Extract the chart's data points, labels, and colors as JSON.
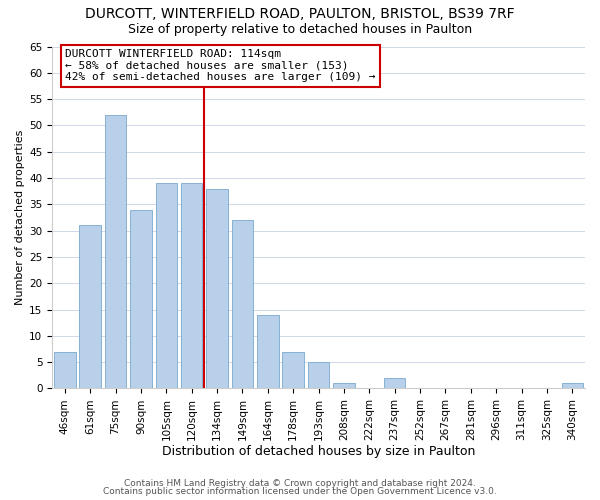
{
  "title": "DURCOTT, WINTERFIELD ROAD, PAULTON, BRISTOL, BS39 7RF",
  "subtitle": "Size of property relative to detached houses in Paulton",
  "xlabel": "Distribution of detached houses by size in Paulton",
  "ylabel": "Number of detached properties",
  "bar_labels": [
    "46sqm",
    "61sqm",
    "75sqm",
    "90sqm",
    "105sqm",
    "120sqm",
    "134sqm",
    "149sqm",
    "164sqm",
    "178sqm",
    "193sqm",
    "208sqm",
    "222sqm",
    "237sqm",
    "252sqm",
    "267sqm",
    "281sqm",
    "296sqm",
    "311sqm",
    "325sqm",
    "340sqm"
  ],
  "bar_values": [
    7,
    31,
    52,
    34,
    39,
    39,
    38,
    32,
    14,
    7,
    5,
    1,
    0,
    2,
    0,
    0,
    0,
    0,
    0,
    0,
    1
  ],
  "bar_color": "#b8d0ea",
  "bar_edge_color": "#7aaad0",
  "vline_x": 5.5,
  "vline_color": "#cc0000",
  "ylim": [
    0,
    65
  ],
  "yticks": [
    0,
    5,
    10,
    15,
    20,
    25,
    30,
    35,
    40,
    45,
    50,
    55,
    60,
    65
  ],
  "annotation_title": "DURCOTT WINTERFIELD ROAD: 114sqm",
  "annotation_line1": "← 58% of detached houses are smaller (153)",
  "annotation_line2": "42% of semi-detached houses are larger (109) →",
  "annotation_box_color": "#ffffff",
  "annotation_box_edge": "#cc0000",
  "footer1": "Contains HM Land Registry data © Crown copyright and database right 2024.",
  "footer2": "Contains public sector information licensed under the Open Government Licence v3.0.",
  "title_fontsize": 10,
  "subtitle_fontsize": 9,
  "xlabel_fontsize": 9,
  "ylabel_fontsize": 8,
  "tick_fontsize": 7.5,
  "footer_fontsize": 6.5,
  "annotation_fontsize": 8,
  "background_color": "#ffffff",
  "grid_color": "#d0d8e8"
}
